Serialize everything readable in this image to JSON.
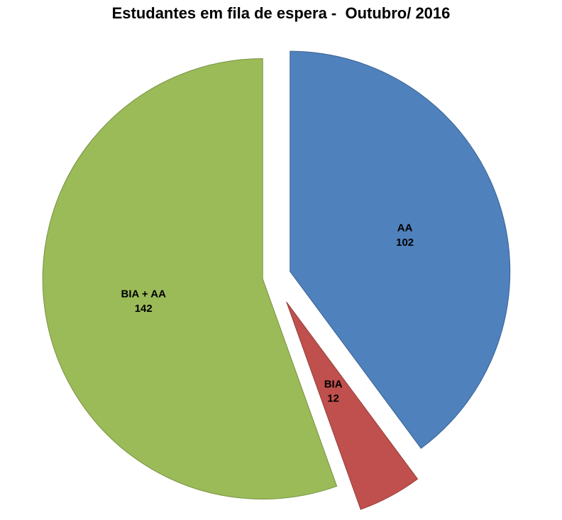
{
  "chart_data": {
    "type": "pie",
    "title": "Estudantes em fila de espera -  Outubro/ 2016",
    "total": 256,
    "start_angle_deg": 0,
    "direction": "clockwise",
    "legend": "none",
    "background_color": "#ffffff",
    "title_color": "#000000",
    "label_color": "#000000",
    "center": [
      385,
      390
    ],
    "radius": 310,
    "slices": [
      {
        "id": "aa",
        "label": "AA",
        "value": 102,
        "color": "#4f81bd",
        "border_color": "#3a6292",
        "explode": 25,
        "label_radius": 0.55
      },
      {
        "id": "bia",
        "label": "BIA",
        "value": 12,
        "color": "#c0504d",
        "border_color": "#953f3c",
        "explode": 40,
        "label_radius": 0.45
      },
      {
        "id": "bia-aa",
        "label": "BIA + AA",
        "value": 142,
        "color": "#9bbb59",
        "border_color": "#779340",
        "explode": 15,
        "label_radius": 0.55
      }
    ]
  }
}
